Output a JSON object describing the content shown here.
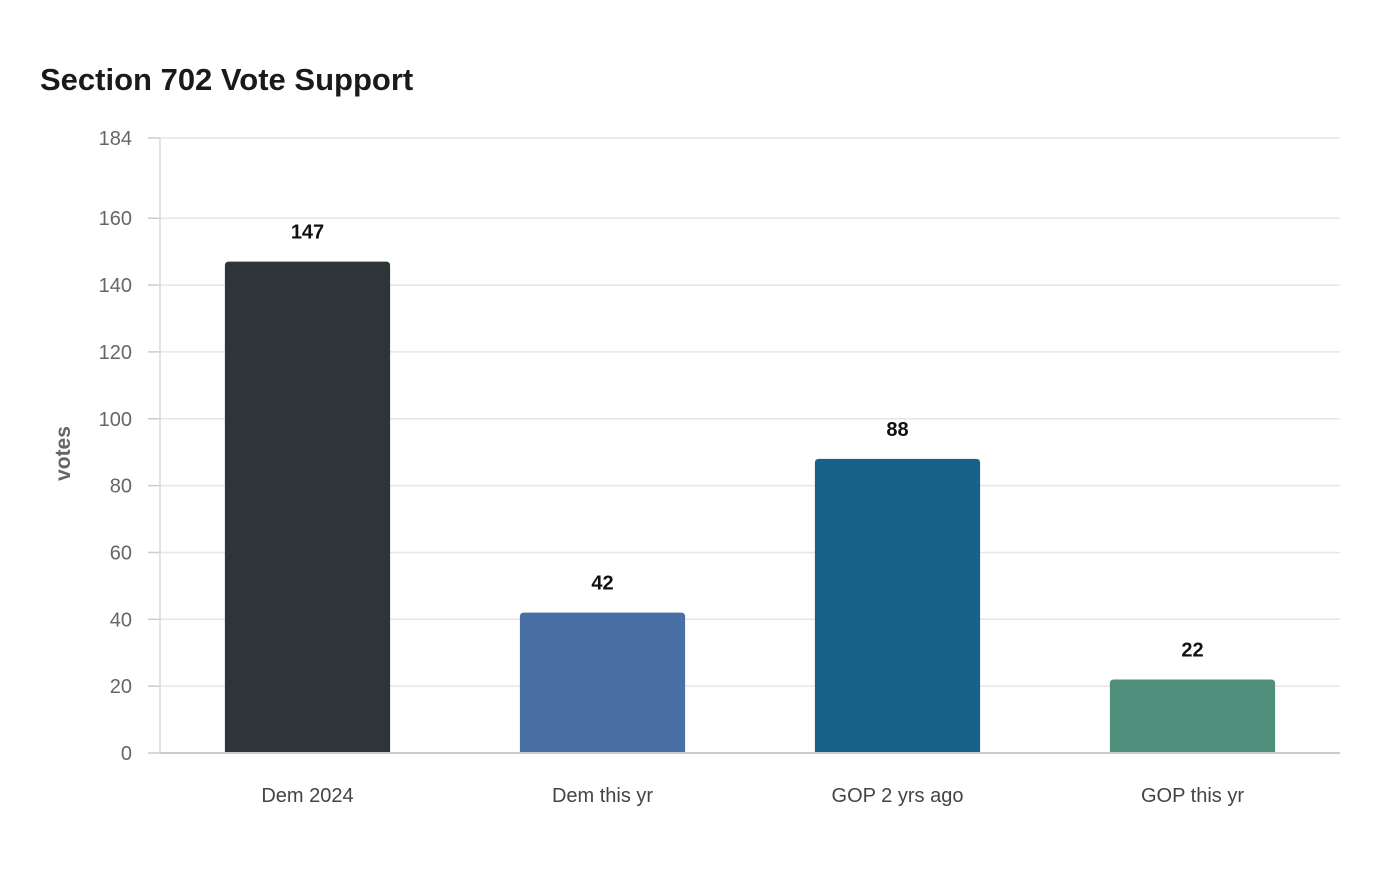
{
  "chart_data": {
    "type": "bar",
    "title": "Section 702 Vote Support",
    "xlabel": "",
    "ylabel": "votes",
    "categories": [
      "Dem 2024",
      "Dem this yr",
      "GOP 2 yrs ago",
      "GOP this yr"
    ],
    "values": [
      147,
      42,
      88,
      22
    ],
    "colors": [
      "#2e3538",
      "#4a6fa5",
      "#186289",
      "#4f8e7a"
    ],
    "ylim": [
      0,
      184
    ],
    "yticks": [
      0,
      20,
      40,
      60,
      80,
      100,
      120,
      140,
      160,
      184
    ],
    "grid": true,
    "legend": "none"
  }
}
